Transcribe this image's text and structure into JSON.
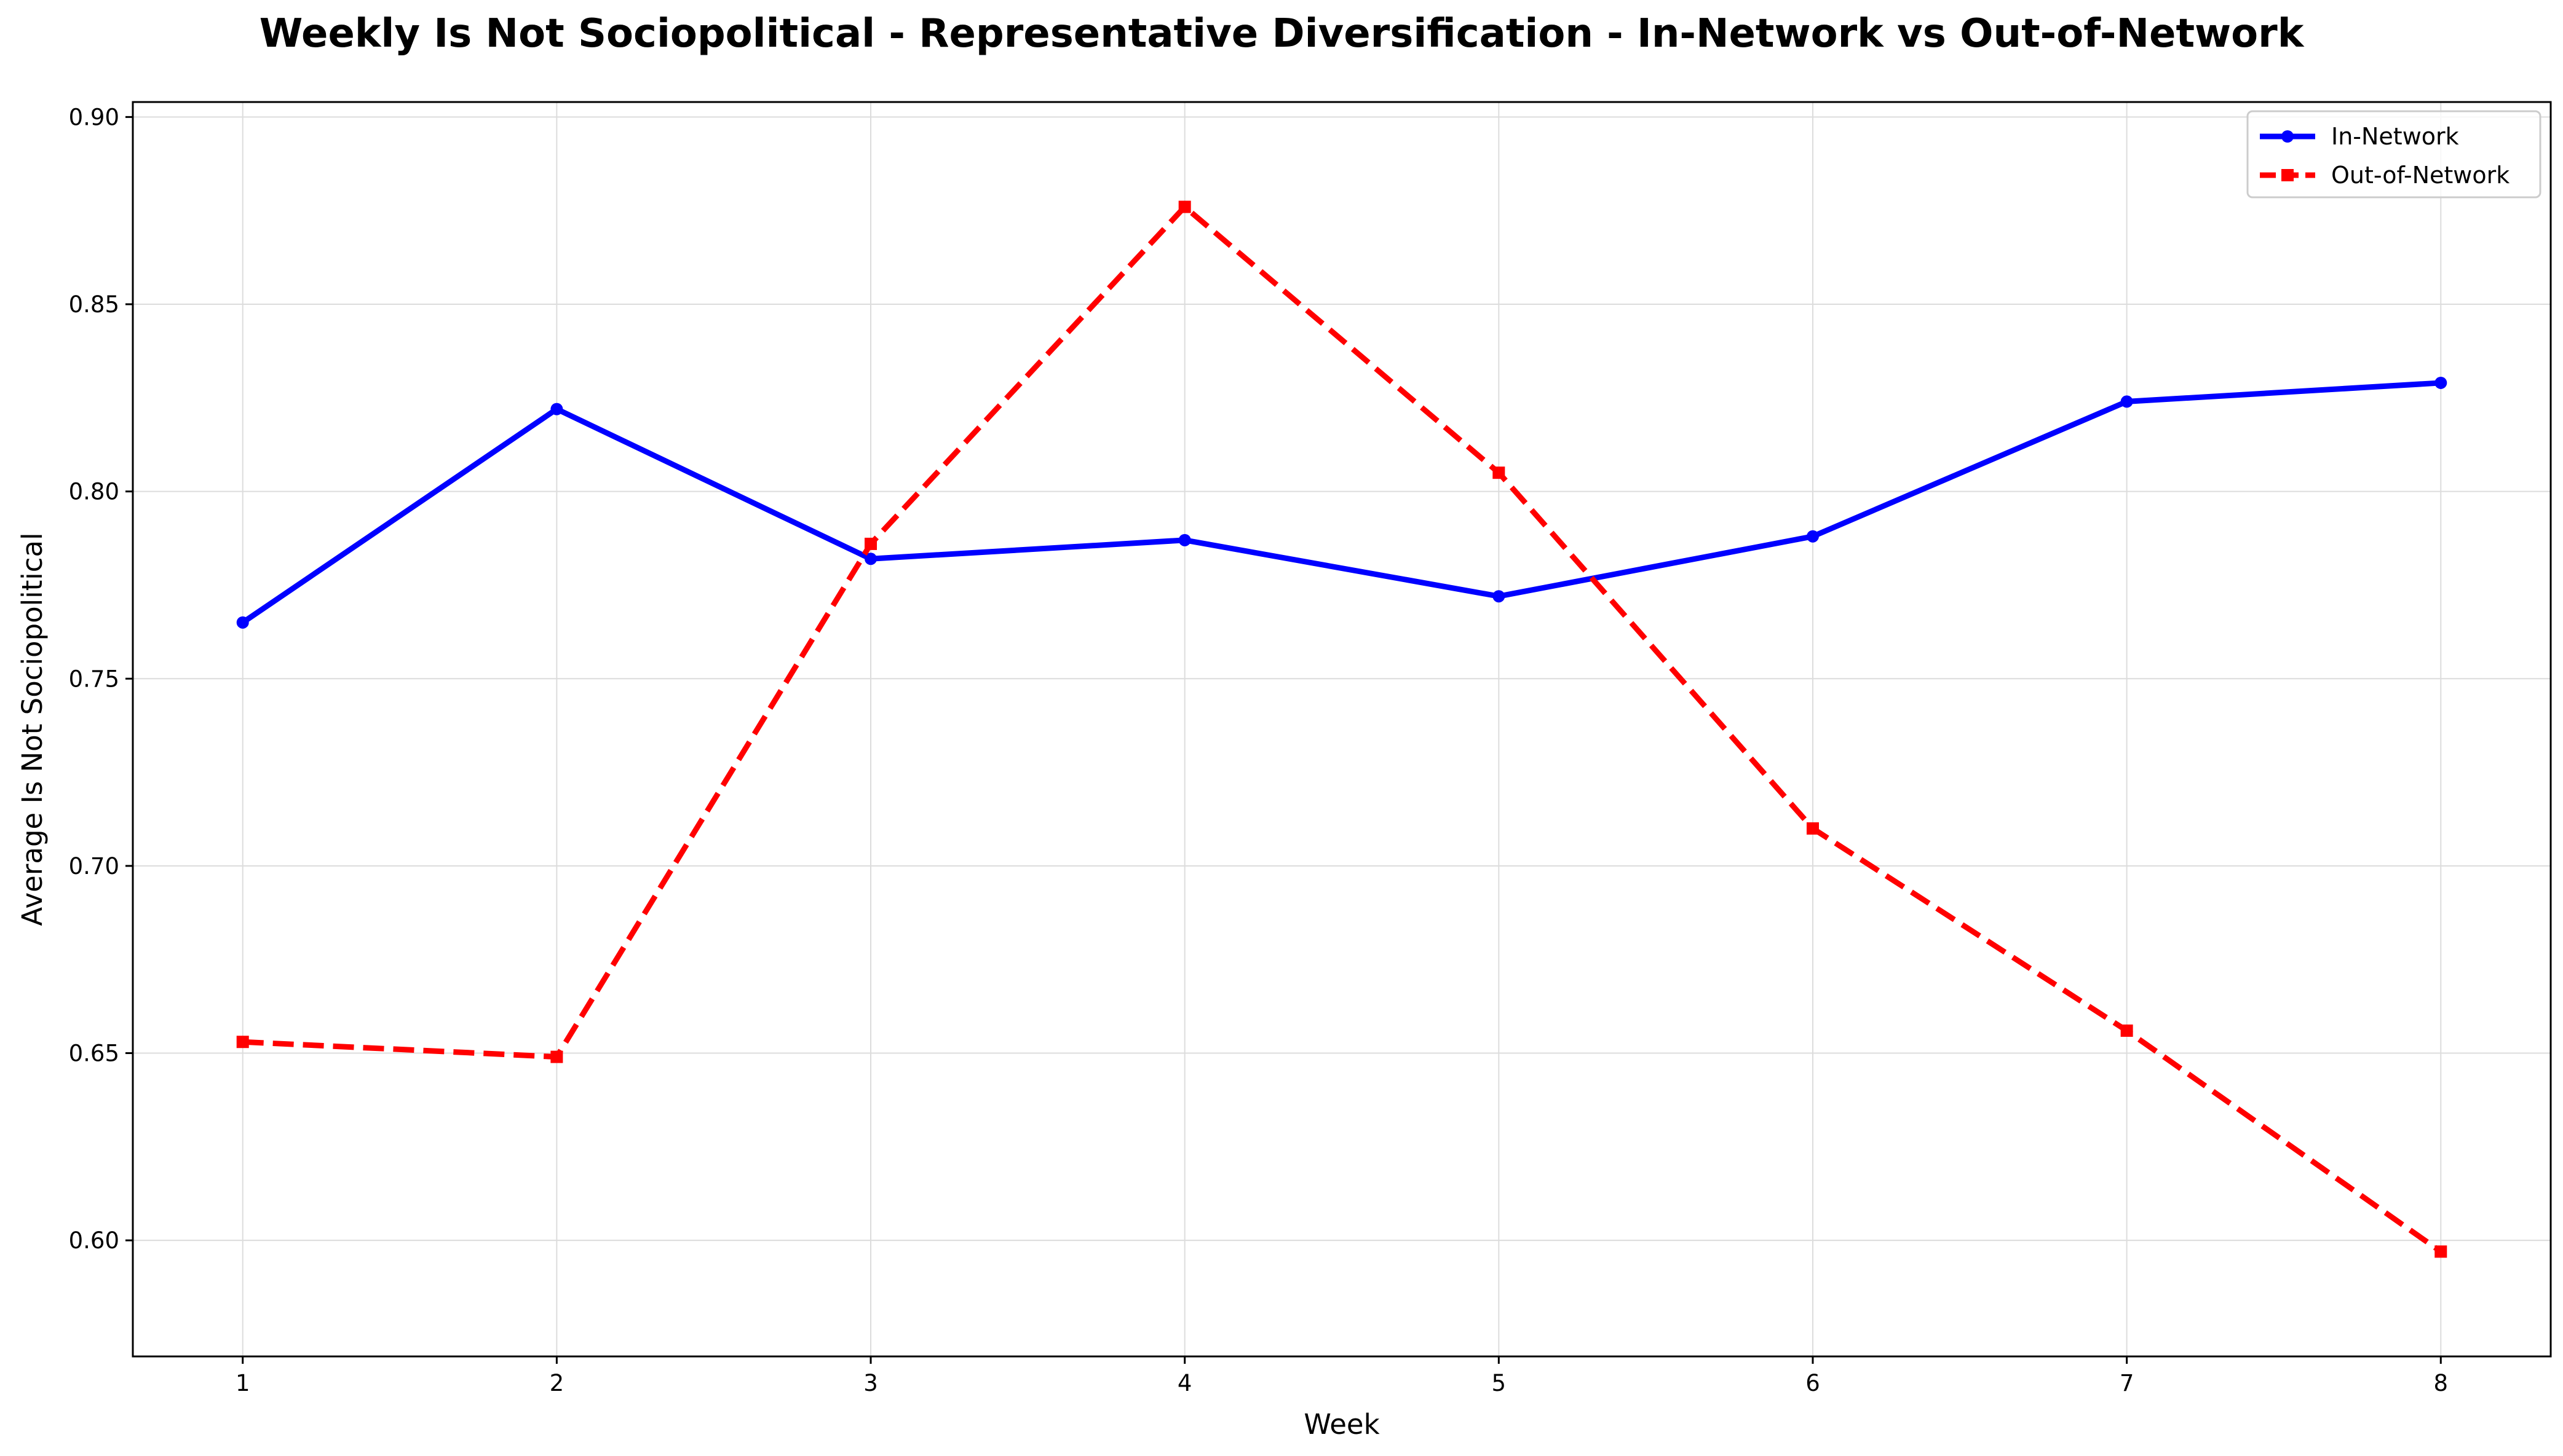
{
  "chart_data": {
    "type": "line",
    "title": "Weekly Is Not Sociopolitical - Representative Diversification - In-Network vs Out-of-Network",
    "xlabel": "Week",
    "ylabel": "Average Is Not Sociopolitical",
    "x": [
      1,
      2,
      3,
      4,
      5,
      6,
      7,
      8
    ],
    "xticks": [
      "1",
      "2",
      "3",
      "4",
      "5",
      "6",
      "7",
      "8"
    ],
    "yticks": [
      "0.60",
      "0.65",
      "0.70",
      "0.75",
      "0.80",
      "0.85",
      "0.90"
    ],
    "xlim": [
      0.65,
      8.35
    ],
    "ylim": [
      0.569,
      0.904
    ],
    "grid": true,
    "legend_position": "top-right",
    "series": [
      {
        "name": "In-Network",
        "color": "#0000ff",
        "style": "solid",
        "marker": "circle",
        "values": [
          0.765,
          0.822,
          0.782,
          0.787,
          0.772,
          0.788,
          0.824,
          0.829
        ]
      },
      {
        "name": "Out-of-Network",
        "color": "#ff0000",
        "style": "dashed",
        "marker": "square",
        "values": [
          0.653,
          0.649,
          0.786,
          0.876,
          0.805,
          0.71,
          0.656,
          0.597
        ]
      }
    ]
  }
}
